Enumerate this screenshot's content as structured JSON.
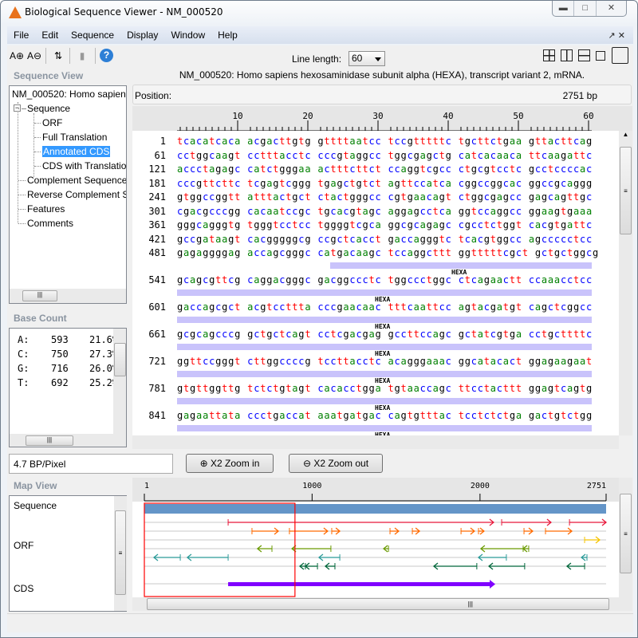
{
  "window": {
    "title": "Biological Sequence Viewer - NM_000520",
    "controls": [
      "minimize",
      "restore",
      "close"
    ]
  },
  "menu": [
    "File",
    "Edit",
    "Sequence",
    "Display",
    "Window",
    "Help"
  ],
  "toolbar": {
    "line_length_label": "Line length:",
    "line_length_value": "60",
    "icons": [
      "zoom-in-text-icon",
      "zoom-out-text-icon",
      "swap-case-icon",
      "eraser-icon",
      "help-icon"
    ],
    "layout_icons": [
      "tile-grid-icon",
      "tile-columns-icon",
      "tile-rows-icon",
      "float-icon",
      "maximize-icon"
    ]
  },
  "sequence_view": {
    "header": "Sequence View",
    "root": "NM_000520: Homo sapiens",
    "items": [
      {
        "label": "Sequence",
        "level": 1
      },
      {
        "label": "ORF",
        "level": 2
      },
      {
        "label": "Full Translation",
        "level": 2
      },
      {
        "label": "Annotated CDS",
        "level": 2,
        "selected": true
      },
      {
        "label": "CDS with Translation",
        "level": 2
      },
      {
        "label": "Complement Sequence",
        "level": 1
      },
      {
        "label": "Reverse Complement Se",
        "level": 1
      },
      {
        "label": "Features",
        "level": 1
      },
      {
        "label": "Comments",
        "level": 1
      }
    ]
  },
  "base_count": {
    "header": "Base Count",
    "rows": [
      {
        "base": "A:",
        "count": "593",
        "pct": "21.6%"
      },
      {
        "base": "C:",
        "count": "750",
        "pct": "27.3%"
      },
      {
        "base": "G:",
        "count": "716",
        "pct": "26.0%"
      },
      {
        "base": "T:",
        "count": "692",
        "pct": "25.2%"
      }
    ]
  },
  "main": {
    "title": "NM_000520: Homo sapiens hexosaminidase subunit alpha (HEXA), transcript variant 2, mRNA.",
    "position_label": "Position:",
    "length": "2751 bp",
    "ruler_labels": [
      "10",
      "20",
      "30",
      "40",
      "50",
      "60"
    ],
    "base_colors": {
      "a": "#008000",
      "c": "#0000ff",
      "g": "#000000",
      "t": "#ff0000"
    },
    "lines": [
      {
        "num": "1",
        "seq": "tcacatcaca acgacttgtg gttttaatcc tccgtttttc tgcttctgaa gttacttcag"
      },
      {
        "num": "61",
        "seq": "cctggcaagt cctttacctc cccgtaggcc tggcgagctg catcacaaca ttcaagattc"
      },
      {
        "num": "121",
        "seq": "accctagagc catctgggaa actttcttct ccaggtcgcc ctgcgtcctc gcctccccac"
      },
      {
        "num": "181",
        "seq": "cccgttcttc tcgagtcggg tgagctgtct agttccatca cggccggcac ggccgcaggg"
      },
      {
        "num": "241",
        "seq": "gtggccggtt atttactgct ctactgggcc cgtgaacagt ctggcgagcc gagcagttgc"
      },
      {
        "num": "301",
        "seq": "cgacgcccgg cacaatccgc tgcacgtagc aggagcctca ggtccaggcc ggaagtgaaa"
      },
      {
        "num": "361",
        "seq": "gggcagggtg tgggtcctcc tggggtcgca ggcgcagagc cgcctctggt cacgtgattc"
      },
      {
        "num": "421",
        "seq": "gccgataagt cacgggggcg ccgctcacct gaccagggtc tcacgtggcc agccccctcc"
      },
      {
        "num": "481",
        "seq": "gagaggggag accagcgggc catgacaagc tccaggcttt ggtttttcgct gctgctggcg"
      },
      {
        "num": "541",
        "seq": "gcagcgttcg caggacgggc gacggccctc tggccctggc ctcagaactt ccaaacctcc",
        "feature": "HEXA",
        "feature_start_col": 23
      },
      {
        "num": "601",
        "seq": "gaccagcgct acgtccttta cccgaacaac tttcaattcc agtacgatgt cagctcggcc",
        "feature": "HEXA",
        "feature_start_col": 1
      },
      {
        "num": "661",
        "seq": "gcgcagcccg gctgctcagt cctcgacgag gccttccagc gctatcgtga cctgcttttc",
        "feature": "HEXA",
        "feature_start_col": 1
      },
      {
        "num": "721",
        "seq": "ggttccgggt cttggccccg tccttacctc acagggaaac ggcatacact ggagaagaat",
        "feature": "HEXA",
        "feature_start_col": 1
      },
      {
        "num": "781",
        "seq": "gtgttggttg tctctgtagt cacacctgga tgtaaccagc ttcctacttt ggagtcagtg",
        "feature": "HEXA",
        "feature_start_col": 1
      },
      {
        "num": "841",
        "seq": "gagaattata ccctgaccat aaatgatgac cagtgtttac tcctctctga gactgtctgg",
        "feature": "HEXA",
        "feature_start_col": 1
      },
      {
        "num": "",
        "seq": "",
        "feature": "HEXA",
        "feature_start_col": 1
      }
    ]
  },
  "zoom": {
    "scale": "4.7 BP/Pixel",
    "zoom_in": "X2 Zoom in",
    "zoom_out": "X2 Zoom out"
  },
  "map_view": {
    "header": "Map View",
    "row_labels": [
      {
        "label": "Sequence",
        "row": 0
      },
      {
        "label": "ORF",
        "row": 4
      },
      {
        "label": "CDS",
        "row": 9
      }
    ],
    "axis": {
      "min": 1,
      "max": 2751,
      "tick_labels": [
        "1",
        "1000",
        "2000",
        "2751"
      ],
      "ticks": [
        1,
        1000,
        2000,
        2751
      ]
    },
    "sequence_color": "#6495c8",
    "view_window": [
      1,
      898
    ],
    "view_color": "#ff0000",
    "orf_rows": [
      {
        "color": "#e8173a",
        "dir": 1,
        "segments": [
          [
            500,
            2081
          ],
          [
            2129,
            2423
          ],
          [
            2533,
            2751
          ]
        ]
      },
      {
        "color": "#ff6a00",
        "dir": 1,
        "segments": [
          [
            642,
            799
          ],
          [
            865,
            1093
          ],
          [
            1117,
            1165
          ],
          [
            1464,
            1516
          ],
          [
            1597,
            1640
          ],
          [
            1887,
            1967
          ],
          [
            1991,
            2024
          ],
          [
            2262,
            2314
          ],
          [
            2390,
            2547
          ]
        ]
      },
      {
        "color": "#f5c400",
        "dir": 1,
        "segments": [
          [
            2623,
            2713
          ]
        ]
      },
      {
        "color": "#6a9a00",
        "dir": -1,
        "segments": [
          [
            675,
            761
          ],
          [
            880,
            1112
          ],
          [
            1426,
            1455
          ],
          [
            2005,
            2257
          ],
          [
            2257,
            2290
          ]
        ]
      },
      {
        "color": "#2a9a98",
        "dir": -1,
        "segments": [
          [
            58,
            215
          ],
          [
            257,
            500
          ],
          [
            1041,
            1165
          ],
          [
            1991,
            2157
          ],
          [
            2604,
            2637
          ]
        ]
      },
      {
        "color": "#00663a",
        "dir": -1,
        "segments": [
          [
            927,
            960
          ],
          [
            960,
            1032
          ],
          [
            1079,
            1136
          ],
          [
            1725,
            1981
          ],
          [
            2053,
            2266
          ],
          [
            2518,
            2623
          ]
        ]
      }
    ],
    "cds": {
      "color": "#8000ff",
      "start": 500,
      "end": 2091
    }
  }
}
